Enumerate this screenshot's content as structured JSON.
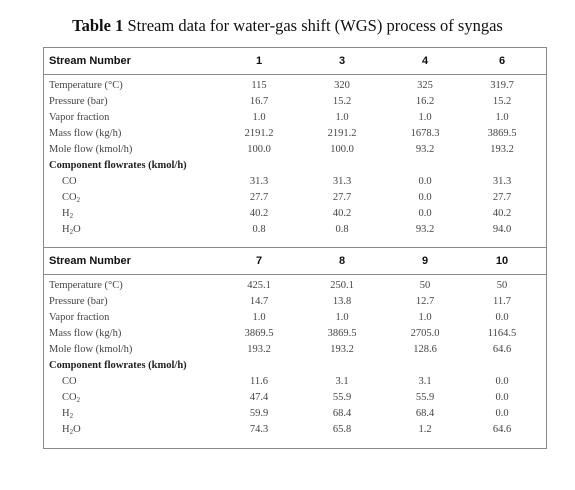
{
  "caption": {
    "label": "Table 1",
    "text": "Stream data for water-gas shift (WGS) process of syngas"
  },
  "blocks": [
    {
      "header": "Stream Number",
      "streams": [
        "1",
        "3",
        "4",
        "6"
      ],
      "rows": [
        {
          "label": "Temperature (°C)",
          "values": [
            "115",
            "320",
            "325",
            "319.7"
          ]
        },
        {
          "label": "Pressure (bar)",
          "values": [
            "16.7",
            "15.2",
            "16.2",
            "15.2"
          ]
        },
        {
          "label": "Vapor fraction",
          "values": [
            "1.0",
            "1.0",
            "1.0",
            "1.0"
          ]
        },
        {
          "label": "Mass flow (kg/h)",
          "values": [
            "2191.2",
            "2191.2",
            "1678.3",
            "3869.5"
          ]
        },
        {
          "label": "Mole flow (kmol/h)",
          "values": [
            "100.0",
            "100.0",
            "93.2",
            "193.2"
          ]
        },
        {
          "label": "Component flowrates (kmol/h)",
          "values": []
        },
        {
          "label": "CO",
          "values": [
            "31.3",
            "31.3",
            "0.0",
            "31.3"
          ]
        },
        {
          "label": "CO2",
          "values": [
            "27.7",
            "27.7",
            "0.0",
            "27.7"
          ]
        },
        {
          "label": "H2",
          "values": [
            "40.2",
            "40.2",
            "0.0",
            "40.2"
          ]
        },
        {
          "label": "H2O",
          "values": [
            "0.8",
            "0.8",
            "93.2",
            "94.0"
          ]
        }
      ]
    },
    {
      "header": "Stream Number",
      "streams": [
        "7",
        "8",
        "9",
        "10"
      ],
      "rows": [
        {
          "label": "Temperature (°C)",
          "values": [
            "425.1",
            "250.1",
            "50",
            "50"
          ]
        },
        {
          "label": "Pressure (bar)",
          "values": [
            "14.7",
            "13.8",
            "12.7",
            "11.7"
          ]
        },
        {
          "label": "Vapor fraction",
          "values": [
            "1.0",
            "1.0",
            "1.0",
            "0.0"
          ]
        },
        {
          "label": "Mass flow (kg/h)",
          "values": [
            "3869.5",
            "3869.5",
            "2705.0",
            "1164.5"
          ]
        },
        {
          "label": "Mole flow (kmol/h)",
          "values": [
            "193.2",
            "193.2",
            "128.6",
            "64.6"
          ]
        },
        {
          "label": "Component flowrates (kmol/h)",
          "values": []
        },
        {
          "label": "CO",
          "values": [
            "11.6",
            "3.1",
            "3.1",
            "0.0"
          ]
        },
        {
          "label": "CO2",
          "values": [
            "47.4",
            "55.9",
            "55.9",
            "0.0"
          ]
        },
        {
          "label": "H2",
          "values": [
            "59.9",
            "68.4",
            "68.4",
            "0.0"
          ]
        },
        {
          "label": "H2O",
          "values": [
            "74.3",
            "65.8",
            "1.2",
            "64.6"
          ]
        }
      ]
    }
  ]
}
